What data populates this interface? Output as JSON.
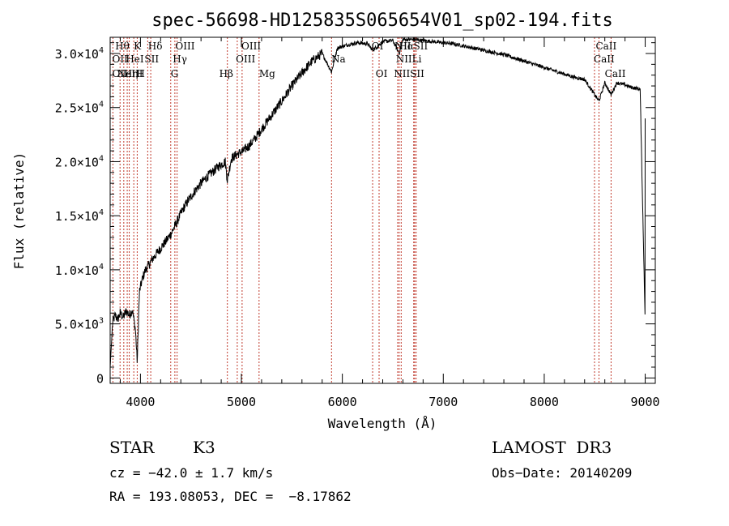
{
  "chart_data": {
    "type": "line",
    "title": "spec-56698-HD125835S065654V01_sp02-194.fits",
    "xlabel": "Wavelength (Å)",
    "ylabel": "Flux (relative)",
    "xlim": [
      3700,
      9100
    ],
    "ylim": [
      -500,
      31500
    ],
    "x_ticks": [
      4000,
      5000,
      6000,
      7000,
      8000,
      9000
    ],
    "x_tick_labels": [
      "4000",
      "5000",
      "6000",
      "7000",
      "8000",
      "9000"
    ],
    "y_ticks": [
      0,
      5000,
      10000,
      15000,
      20000,
      25000,
      30000
    ],
    "y_tick_labels": [
      {
        "mantissa": "0",
        "exp": ""
      },
      {
        "mantissa": "5.0×10",
        "exp": "3"
      },
      {
        "mantissa": "1.0×10",
        "exp": "4"
      },
      {
        "mantissa": "1.5×10",
        "exp": "4"
      },
      {
        "mantissa": "2.0×10",
        "exp": "4"
      },
      {
        "mantissa": "2.5×10",
        "exp": "4"
      },
      {
        "mantissa": "3.0×10",
        "exp": "4"
      }
    ],
    "grid": false,
    "series": [
      {
        "x": [
          3700,
          3725,
          3750,
          3775,
          3800,
          3830,
          3860,
          3890,
          3920,
          3950,
          3968,
          3990,
          4020,
          4050,
          4080,
          4120,
          4160,
          4200,
          4250,
          4300,
          4340,
          4380,
          4420,
          4480,
          4540,
          4600,
          4660,
          4720,
          4780,
          4840,
          4861,
          4900,
          4960,
          5020,
          5080,
          5140,
          5200,
          5300,
          5400,
          5500,
          5600,
          5700,
          5800,
          5893,
          5950,
          6050,
          6150,
          6250,
          6300,
          6400,
          6500,
          6563,
          6600,
          6700,
          6800,
          6900,
          7000,
          7100,
          7200,
          7300,
          7400,
          7500,
          7600,
          7700,
          7800,
          7900,
          8000,
          8100,
          8200,
          8300,
          8400,
          8498,
          8542,
          8600,
          8662,
          8720,
          8800,
          8850,
          8900,
          8950,
          9000
        ],
        "y": [
          1000,
          5200,
          5800,
          5400,
          6000,
          5600,
          6200,
          5800,
          6300,
          4500,
          1500,
          8000,
          9200,
          10000,
          10400,
          11000,
          11500,
          12000,
          12600,
          13300,
          14000,
          14800,
          15600,
          16500,
          17300,
          18000,
          18600,
          19100,
          19600,
          20000,
          18300,
          20300,
          20700,
          21000,
          21500,
          22200,
          23000,
          24300,
          25600,
          27000,
          28200,
          29300,
          30000,
          28300,
          30500,
          30800,
          31000,
          30900,
          30300,
          31100,
          31200,
          30000,
          31300,
          31300,
          31200,
          31100,
          31000,
          30900,
          30700,
          30500,
          30300,
          30100,
          29900,
          29600,
          29300,
          29000,
          28700,
          28400,
          28100,
          27800,
          27600,
          26200,
          25600,
          27300,
          26200,
          27300,
          27100,
          26900,
          26800,
          26700,
          5000
        ]
      }
    ],
    "lines": [
      {
        "wavelength": 3727,
        "top": "OII",
        "mid": ""
      },
      {
        "wavelength": 3798,
        "top": "Hθ",
        "mid": ""
      },
      {
        "wavelength": 3835,
        "top": "Hη",
        "mid": ""
      },
      {
        "wavelength": 3869,
        "top": "NeIII",
        "mid": ""
      },
      {
        "wavelength": 3889,
        "top": "HeI",
        "mid": ""
      },
      {
        "wavelength": 3934,
        "top": "K",
        "mid": ""
      },
      {
        "wavelength": 3968,
        "top": "H",
        "mid": ""
      },
      {
        "wavelength": 4072,
        "top": "SII",
        "mid": ""
      },
      {
        "wavelength": 4102,
        "top": "Hδ",
        "mid": ""
      },
      {
        "wavelength": 4300,
        "top": "G",
        "mid": ""
      },
      {
        "wavelength": 4341,
        "top": "Hγ",
        "mid": ""
      },
      {
        "wavelength": 4363,
        "top": "OIII",
        "mid": ""
      },
      {
        "wavelength": 4861,
        "top": "Hβ",
        "mid": ""
      },
      {
        "wavelength": 4959,
        "top": "OIII",
        "mid": ""
      },
      {
        "wavelength": 5007,
        "top": "OIII",
        "mid": ""
      },
      {
        "wavelength": 5175,
        "top": "Mg",
        "mid": ""
      },
      {
        "wavelength": 5893,
        "top": "Na",
        "mid": ""
      },
      {
        "wavelength": 6300,
        "top": "OI",
        "mid": ""
      },
      {
        "wavelength": 6364,
        "top": "OI",
        "mid": ""
      },
      {
        "wavelength": 6548,
        "top": "NII",
        "mid": ""
      },
      {
        "wavelength": 6563,
        "top": "Hα",
        "mid": ""
      },
      {
        "wavelength": 6583,
        "top": "NII",
        "mid": ""
      },
      {
        "wavelength": 6707,
        "top": "Li",
        "mid": ""
      },
      {
        "wavelength": 6716,
        "top": "SII",
        "mid": ""
      },
      {
        "wavelength": 6731,
        "top": "SII",
        "mid": ""
      },
      {
        "wavelength": 8498,
        "top": "CaII",
        "mid": ""
      },
      {
        "wavelength": 8542,
        "top": "CaII",
        "mid": ""
      },
      {
        "wavelength": 8662,
        "top": "CaII",
        "mid": ""
      }
    ],
    "line_labels": [
      {
        "text": "Hθ",
        "row": 1,
        "wavelength": 3750
      },
      {
        "text": "K",
        "row": 1,
        "wavelength": 3934
      },
      {
        "text": "Hδ",
        "row": 1,
        "wavelength": 4075
      },
      {
        "text": "OIII",
        "row": 1,
        "wavelength": 4345
      },
      {
        "text": "OIII",
        "row": 1,
        "wavelength": 5000
      },
      {
        "text": "OI",
        "row": 1,
        "wavelength": 6290
      },
      {
        "text": "NII",
        "row": 1,
        "wavelength": 6520
      },
      {
        "text": "Hα",
        "row": 1,
        "wavelength": 6560
      },
      {
        "text": "SII",
        "row": 1,
        "wavelength": 6705
      },
      {
        "text": "CaII",
        "row": 1,
        "wavelength": 8510
      },
      {
        "text": "OII",
        "row": 2,
        "wavelength": 3720
      },
      {
        "text": "HeI",
        "row": 2,
        "wavelength": 3855
      },
      {
        "text": "SII",
        "row": 2,
        "wavelength": 4040
      },
      {
        "text": "Hγ",
        "row": 2,
        "wavelength": 4320
      },
      {
        "text": "OIII",
        "row": 2,
        "wavelength": 4945
      },
      {
        "text": "Na",
        "row": 2,
        "wavelength": 5890
      },
      {
        "text": "NII",
        "row": 2,
        "wavelength": 6530
      },
      {
        "text": "Li",
        "row": 2,
        "wavelength": 6690
      },
      {
        "text": "CaII",
        "row": 2,
        "wavelength": 8490
      },
      {
        "text": "OII",
        "row": 3,
        "wavelength": 3720
      },
      {
        "text": "NeIII",
        "row": 3,
        "wavelength": 3770
      },
      {
        "text": "Hη",
        "row": 3,
        "wavelength": 3835
      },
      {
        "text": "H",
        "row": 3,
        "wavelength": 3960
      },
      {
        "text": "G",
        "row": 3,
        "wavelength": 4300
      },
      {
        "text": "Hβ",
        "row": 3,
        "wavelength": 4780
      },
      {
        "text": "Mg",
        "row": 3,
        "wavelength": 5175
      },
      {
        "text": "OI",
        "row": 3,
        "wavelength": 6330
      },
      {
        "text": "NII",
        "row": 3,
        "wavelength": 6510
      },
      {
        "text": "SII",
        "row": 3,
        "wavelength": 6670
      },
      {
        "text": "CaII",
        "row": 3,
        "wavelength": 8600
      }
    ],
    "line_color": "#c0392b",
    "spectrum_color": "#000000"
  },
  "info": {
    "object_class": "STAR",
    "subclass": "K3",
    "survey": "LAMOST  DR3",
    "cz": "cz = −42.0 ± 1.7 km/s",
    "obs_date": "Obs−Date: 20140209",
    "coords": "RA = 193.08053, DEC =  −8.17862"
  }
}
